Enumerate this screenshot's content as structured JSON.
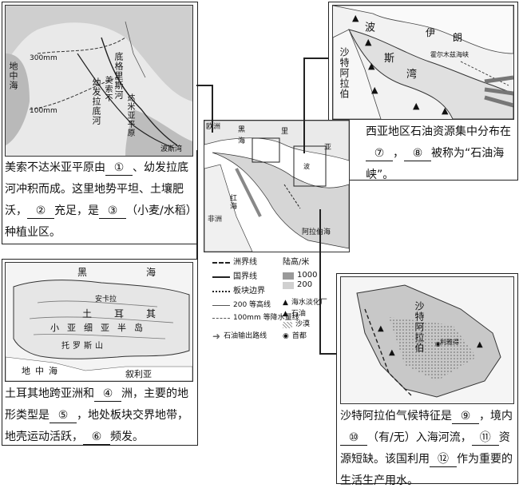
{
  "central_map": {
    "labels": [
      "欧洲",
      "黑",
      "海",
      "里",
      "亚",
      "红",
      "海",
      "阿",
      "拉",
      "伯",
      "海",
      "非",
      "洲",
      "波"
    ]
  },
  "legend": {
    "continent_border": "洲界线",
    "country_border": "国界线",
    "plate_border": "板块边界",
    "contour": "200 等高线",
    "isohyet": "100mm 等降水量线",
    "oil_route": "石油输出路线",
    "elevation_title": "陆高/米",
    "elev_1000": "1000",
    "elev_200": "200",
    "desalination": "海水淡化厂",
    "oil": "石油",
    "desert": "沙漠",
    "capital": "首都"
  },
  "mesopotamia_map": {
    "labels": [
      "地",
      "中",
      "海",
      "300mm",
      "100mm",
      "底",
      "格",
      "里",
      "斯",
      "河",
      "幼",
      "发",
      "拉",
      "底",
      "河",
      "美",
      "索",
      "不",
      "达",
      "米",
      "亚",
      "平",
      "原",
      "波斯湾"
    ]
  },
  "gulf_map": {
    "labels": [
      "波",
      "斯",
      "湾",
      "伊",
      "朗",
      "沙",
      "特",
      "阿",
      "拉",
      "伯",
      "霍尔木兹海峡"
    ]
  },
  "turkey_map": {
    "labels": [
      "黑",
      "海",
      "安卡拉",
      "土",
      "耳",
      "其",
      "小",
      "亚",
      "细",
      "亚",
      "半",
      "岛",
      "地",
      "中",
      "海",
      "叙利亚",
      "托",
      "罗",
      "斯",
      "山"
    ]
  },
  "saudi_map": {
    "labels": [
      "沙",
      "特",
      "阿",
      "拉",
      "伯",
      "利雅得"
    ]
  },
  "q_meso": {
    "p1": "美索不达米亚平原由",
    "b1": "①",
    "p2": "、幼发拉底河冲积而成。这里地势平坦、土壤肥沃，",
    "b2": "②",
    "p3": "充足，是",
    "b3": "③",
    "p4": "（小麦/水稻）种植业区。"
  },
  "q_gulf": {
    "p1": "西亚地区石油资源集中分布在",
    "b7": "⑦",
    "p2": "，",
    "b8": "⑧",
    "p3": "被称为“石油海峡”。"
  },
  "q_turkey": {
    "p1": "土耳其地跨亚洲和",
    "b4": "④",
    "p2": "洲，主要的地形类型是",
    "b5": "⑤",
    "p3": "，地处板块交界地带，地壳运动活跃，",
    "b6": "⑥",
    "p4": "频发。"
  },
  "q_saudi": {
    "p1": "沙特阿拉伯气候特征是",
    "b9": "⑨",
    "p2": "，境内",
    "b10": "⑩",
    "p3": "（有/无）入海河流，",
    "b11": "⑪",
    "p4": "资源短缺。该国利用",
    "b12": "⑫",
    "p5": "作为重要的生活生产用水。"
  }
}
